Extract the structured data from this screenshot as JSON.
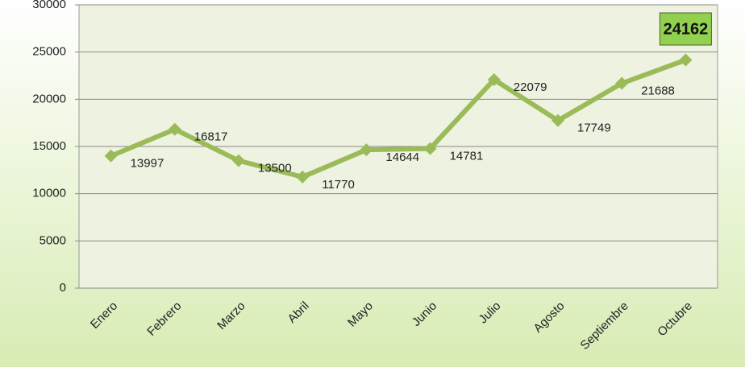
{
  "chart_data": {
    "type": "line",
    "categories": [
      "Enero",
      "Febrero",
      "Marzo",
      "Abril",
      "Mayo",
      "Junio",
      "Julio",
      "Agosto",
      "Septiembre",
      "Octubre"
    ],
    "values": [
      13997,
      16817,
      13500,
      11770,
      14644,
      14781,
      22079,
      17749,
      21688,
      24162
    ],
    "color": "#9bbb59",
    "ylim": [
      0,
      30000
    ],
    "yticks": [
      0,
      5000,
      10000,
      15000,
      20000,
      25000,
      30000
    ],
    "grid": true
  }
}
